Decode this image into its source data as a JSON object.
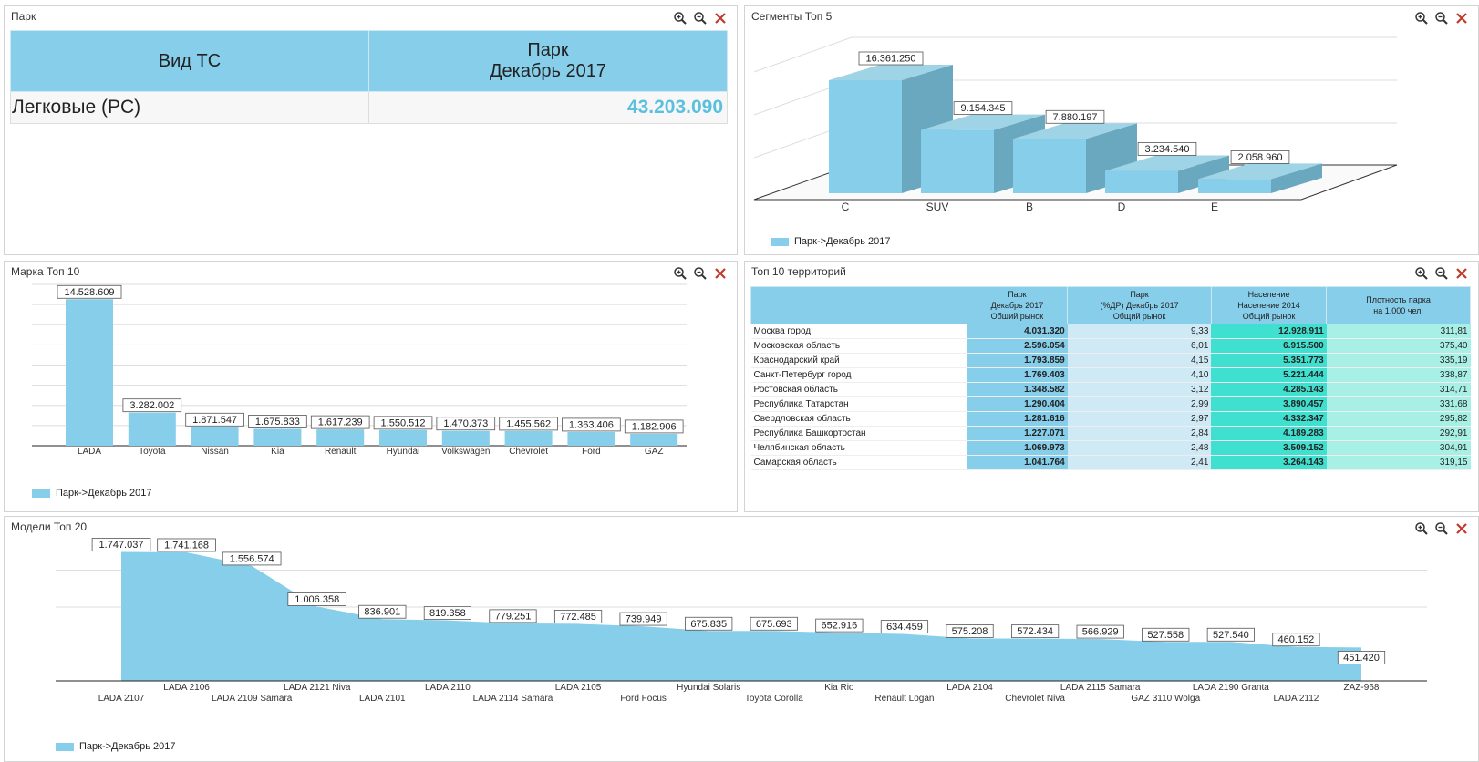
{
  "panels": {
    "park": {
      "title": "Парк"
    },
    "segments": {
      "title": "Сегменты Топ 5"
    },
    "brands": {
      "title": "Марка Топ 10"
    },
    "territories": {
      "title": "Топ 10 территорий"
    },
    "models": {
      "title": "Модели Топ 20"
    }
  },
  "park_table": {
    "col1": "Вид ТС",
    "col2_line1": "Парк",
    "col2_line2": "Декабрь 2017",
    "row_label": "Легковые (PC)",
    "row_value": "43.203.090"
  },
  "legend_label": "Парк->Декабрь 2017",
  "colors": {
    "bar": "#87ceeb",
    "bar_side": "#6aa8c0",
    "bar_top": "#9fd3e6",
    "close": "#c0392b"
  },
  "icons": [
    "zoom-in-icon",
    "zoom-out-icon",
    "close-icon"
  ],
  "territories": {
    "headers": [
      "",
      "Парк\nДекабрь 2017\nОбщий рынок",
      "Парк\n(%ДР) Декабрь 2017\nОбщий рынок",
      "Население\nНаселение 2014\nОбщий рынок",
      "Плотность парка\nна 1.000 чел."
    ],
    "rows": [
      [
        "Москва город",
        "4.031.320",
        "9,33",
        "12.928.911",
        "311,81"
      ],
      [
        "Московская область",
        "2.596.054",
        "6,01",
        "6.915.500",
        "375,40"
      ],
      [
        "Краснодарский край",
        "1.793.859",
        "4,15",
        "5.351.773",
        "335,19"
      ],
      [
        "Санкт-Петербург город",
        "1.769.403",
        "4,10",
        "5.221.444",
        "338,87"
      ],
      [
        "Ростовская область",
        "1.348.582",
        "3,12",
        "4.285.143",
        "314,71"
      ],
      [
        "Республика Татарстан",
        "1.290.404",
        "2,99",
        "3.890.457",
        "331,68"
      ],
      [
        "Свердловская область",
        "1.281.616",
        "2,97",
        "4.332.347",
        "295,82"
      ],
      [
        "Республика Башкортостан",
        "1.227.071",
        "2,84",
        "4.189.283",
        "292,91"
      ],
      [
        "Челябинская область",
        "1.069.973",
        "2,48",
        "3.509.152",
        "304,91"
      ],
      [
        "Самарская область",
        "1.041.764",
        "2,41",
        "3.264.143",
        "319,15"
      ]
    ]
  },
  "chart_data": [
    {
      "type": "bar",
      "title": "Сегменты Топ 5",
      "categories": [
        "C",
        "SUV",
        "B",
        "D",
        "E"
      ],
      "values": [
        16361250,
        9154345,
        7880197,
        3234540,
        2058960
      ],
      "labels": [
        "16.361.250",
        "9.154.345",
        "7.880.197",
        "3.234.540",
        "2.058.960"
      ],
      "series_name": "Парк->Декабрь 2017",
      "style": "3d",
      "legend": "bottom-left"
    },
    {
      "type": "bar",
      "title": "Марка Топ 10",
      "categories": [
        "LADA",
        "Toyota",
        "Nissan",
        "Kia",
        "Renault",
        "Hyundai",
        "Volkswagen",
        "Chevrolet",
        "Ford",
        "GAZ"
      ],
      "values": [
        14528609,
        3282002,
        1871547,
        1675833,
        1617239,
        1550512,
        1470373,
        1455562,
        1363406,
        1182906
      ],
      "labels": [
        "14.528.609",
        "3.282.002",
        "1.871.547",
        "1.675.833",
        "1.617.239",
        "1.550.512",
        "1.470.373",
        "1.455.562",
        "1.363.406",
        "1.182.906"
      ],
      "series_name": "Парк->Декабрь 2017",
      "ylim": [
        0,
        16000000
      ],
      "legend": "bottom-left"
    },
    {
      "type": "area",
      "title": "Модели Топ 20",
      "categories": [
        "LADA 2107",
        "LADA 2106",
        "LADA 2109 Samara",
        "LADA 2121 Niva",
        "LADA 2101",
        "LADA 2110",
        "LADA 2114 Samara",
        "LADA 2105",
        "Ford Focus",
        "Hyundai Solaris",
        "Toyota Corolla",
        "Kia Rio",
        "Renault Logan",
        "LADA 2104",
        "Chevrolet Niva",
        "LADA 2115 Samara",
        "GAZ 3110 Wolga",
        "LADA 2190 Granta",
        "LADA 2112",
        "ZAZ-968"
      ],
      "values": [
        1747037,
        1741168,
        1556574,
        1006358,
        836901,
        819358,
        779251,
        772485,
        739949,
        675835,
        675693,
        652916,
        634459,
        575208,
        572434,
        566929,
        527558,
        527540,
        460152,
        451420
      ],
      "labels": [
        "1.747.037",
        "1.741.168",
        "1.556.574",
        "1.006.358",
        "836.901",
        "819.358",
        "779.251",
        "772.485",
        "739.949",
        "675.835",
        "675.693",
        "652.916",
        "634.459",
        "575.208",
        "572.434",
        "566.929",
        "527.558",
        "527.540",
        "460.152",
        "451.420"
      ],
      "series_name": "Парк->Декабрь 2017",
      "ylim": [
        0,
        2000000
      ],
      "legend": "bottom-left"
    }
  ]
}
